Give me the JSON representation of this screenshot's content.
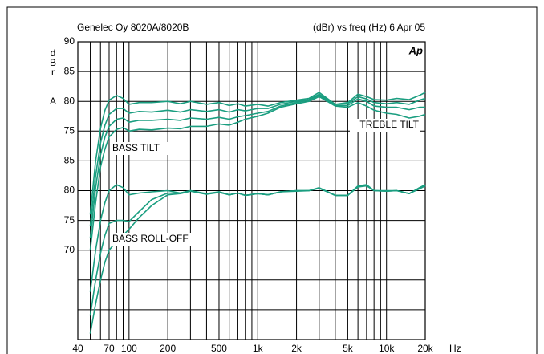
{
  "chart_data": {
    "type": "line",
    "title": "Genelec Oy 8020A/8020B",
    "subtitle": "(dBr) vs freq (Hz) 6 Apr 05",
    "logo": "Ap",
    "y_label": "dBrA",
    "x_label": "Hz",
    "annotations": [
      "BASS TILT",
      "TREBLE TILT",
      "BASS ROLL-OFF"
    ],
    "log_x": true,
    "grid": true,
    "xlim": [
      40,
      20000
    ],
    "ylim": [
      40,
      90
    ],
    "xticks": [
      40,
      {
        "value": 50,
        "label": null
      },
      {
        "value": 60,
        "label": null
      },
      70,
      {
        "value": 80,
        "label": null
      },
      {
        "value": 90,
        "label": null
      },
      100,
      200,
      {
        "value": 300,
        "label": null
      },
      {
        "value": 400,
        "label": null
      },
      500,
      {
        "value": 600,
        "label": null
      },
      {
        "value": 700,
        "label": null
      },
      {
        "value": 800,
        "label": null
      },
      {
        "value": 900,
        "label": null
      },
      {
        "value": 1000,
        "label": "1k"
      },
      {
        "value": 2000,
        "label": "2k"
      },
      {
        "value": 3000,
        "label": null
      },
      {
        "value": 4000,
        "label": null
      },
      {
        "value": 5000,
        "label": "5k"
      },
      {
        "value": 6000,
        "label": null
      },
      {
        "value": 7000,
        "label": null
      },
      {
        "value": 8000,
        "label": null
      },
      {
        "value": 9000,
        "label": null
      },
      {
        "value": 10000,
        "label": "10k"
      },
      {
        "value": 20000,
        "label": "20k"
      }
    ],
    "yticks": [
      90,
      85,
      80,
      75,
      {
        "value": 70,
        "label": "85"
      },
      {
        "value": 65,
        "label": "80"
      },
      {
        "value": 60,
        "label": "75"
      },
      {
        "value": 55,
        "label": "70"
      },
      {
        "value": 50,
        "label": null
      },
      {
        "value": 45,
        "label": null
      },
      {
        "value": 40,
        "label": null
      }
    ],
    "x": [
      50,
      55,
      60,
      65,
      70,
      80,
      90,
      100,
      120,
      150,
      200,
      250,
      300,
      400,
      500,
      600,
      700,
      800,
      1000,
      1200,
      1500,
      2000,
      2500,
      3000,
      4000,
      5000,
      6000,
      7000,
      8000,
      10000,
      12000,
      15000,
      18000,
      20000
    ],
    "series": [
      {
        "color": "#1a9e80",
        "values": [
          61,
          70,
          75.5,
          78.5,
          80.2,
          81,
          80.5,
          79.5,
          79.8,
          79.8,
          80,
          79.6,
          80,
          79.5,
          79.8,
          79.3,
          79.6,
          79.2,
          79.5,
          79.2,
          79.8,
          80.2,
          80.5,
          81.5,
          79.5,
          79.8,
          81.2,
          80.8,
          80.3,
          80.2,
          80.5,
          80.3,
          81,
          81.5
        ]
      },
      {
        "color": "#1a9e80",
        "values": [
          59,
          67.5,
          73,
          76,
          77.8,
          78.8,
          78.8,
          78,
          78.3,
          78.2,
          78.5,
          78.2,
          78.6,
          78.3,
          78.6,
          78.2,
          78.6,
          78.4,
          78.8,
          78.8,
          79.5,
          80,
          80.3,
          81.2,
          79.5,
          79.6,
          80.8,
          80.4,
          79.8,
          79.6,
          79.8,
          79.5,
          80.2,
          80.5
        ]
      },
      {
        "color": "#1a9e80",
        "values": [
          57,
          65.5,
          71,
          74,
          75.8,
          77,
          77.2,
          76.5,
          76.8,
          76.8,
          77,
          76.8,
          77.2,
          77,
          77.3,
          77,
          77.4,
          77.6,
          78,
          78.3,
          79.2,
          79.8,
          80.2,
          81,
          79.3,
          79.3,
          80.4,
          80,
          79.2,
          79,
          79,
          78.6,
          79,
          79
        ]
      },
      {
        "color": "#1a9e80",
        "values": [
          55,
          63,
          69,
          72,
          74,
          75.3,
          75.6,
          75,
          75.3,
          75.2,
          75.5,
          75.4,
          75.8,
          75.8,
          76.2,
          76,
          76.5,
          77,
          77.5,
          78,
          79,
          79.6,
          80,
          80.8,
          79.2,
          79,
          79.8,
          79.2,
          78.5,
          78,
          77.8,
          77.2,
          77.5,
          77.8
        ]
      },
      {
        "color": "#1a9e80",
        "values": [
          48,
          55,
          60,
          63,
          65,
          66,
          65.5,
          64.3,
          64.6,
          64.8,
          65,
          64.6,
          65,
          64.5,
          64.8,
          64.3,
          64.6,
          64.2,
          64.5,
          64.3,
          64.8,
          65,
          65,
          65.5,
          64.2,
          64.2,
          65.8,
          66,
          65,
          65,
          65,
          64.5,
          65.5,
          66
        ]
      },
      {
        "color": "#1a9e80",
        "values": [
          44,
          50,
          54.5,
          57.5,
          59.5,
          60,
          60,
          59.8,
          61.5,
          63.5,
          64.6,
          64.6,
          65,
          64.4,
          64.8,
          64.3,
          64.6,
          64.2,
          64.5,
          64.3,
          64.8,
          65,
          65,
          65.4,
          64.2,
          64.2,
          65.7,
          65.9,
          65,
          64.9,
          65,
          64.5,
          65.4,
          65.9
        ]
      },
      {
        "color": "#1a9e80",
        "values": [
          41,
          46,
          50,
          53,
          55,
          56.5,
          57.5,
          58.5,
          60.5,
          62.5,
          64.3,
          64.5,
          64.9,
          64.4,
          64.7,
          64.3,
          64.6,
          64.2,
          64.5,
          64.3,
          64.8,
          64.9,
          65,
          65.4,
          64.2,
          64.2,
          65.6,
          65.8,
          65,
          64.9,
          65,
          64.5,
          65.3,
          65.8
        ]
      }
    ]
  }
}
